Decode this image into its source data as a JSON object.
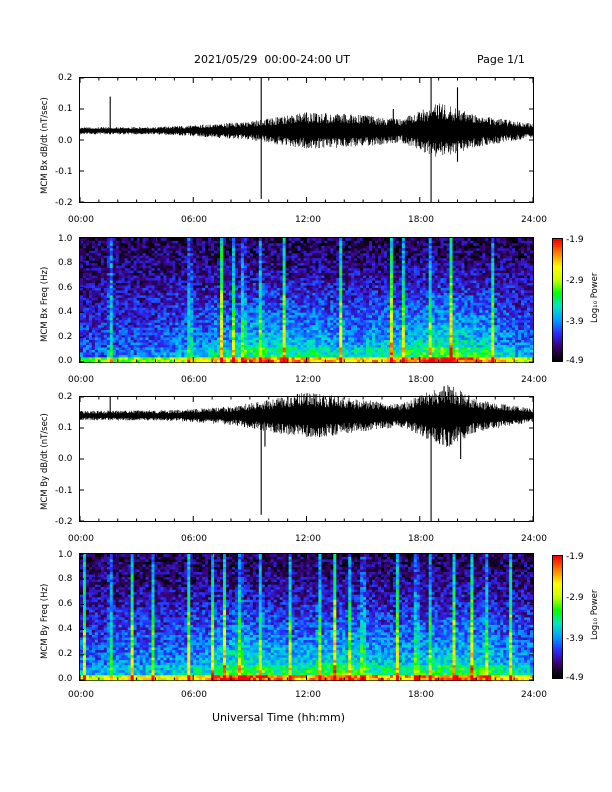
{
  "header": {
    "title": "2021/05/29  00:00-24:00 UT",
    "page": "Page 1/1"
  },
  "xaxis": {
    "label": "Universal Time (hh:mm)",
    "ticks": [
      "00:00",
      "06:00",
      "12:00",
      "18:00",
      "24:00"
    ]
  },
  "colors": {
    "trace": "#000000",
    "colormap": [
      "#000000",
      "#3a0070",
      "#2a2aff",
      "#00a0ff",
      "#00e6c8",
      "#00ff00",
      "#c8ff00",
      "#ffff00",
      "#ff8000",
      "#ff0000"
    ]
  },
  "chart_data": [
    {
      "type": "line",
      "ylabel": "MCM Bx dB/dt (nT/sec)",
      "xlim": [
        "00:00",
        "24:00"
      ],
      "ylim": [
        -0.2,
        0.2
      ],
      "yticks": [
        "0.2",
        "0.1",
        "0.0",
        "-0.1",
        "-0.2"
      ],
      "baseline": 0.03,
      "activity_envelope": [
        {
          "t": "00:00",
          "amp": 0.008
        },
        {
          "t": "04:00",
          "amp": 0.008
        },
        {
          "t": "06:00",
          "amp": 0.012
        },
        {
          "t": "09:00",
          "amp": 0.02
        },
        {
          "t": "12:00",
          "amp": 0.04
        },
        {
          "t": "15:00",
          "amp": 0.035
        },
        {
          "t": "17:00",
          "amp": 0.025
        },
        {
          "t": "19:00",
          "amp": 0.06
        },
        {
          "t": "21:00",
          "amp": 0.035
        },
        {
          "t": "24:00",
          "amp": 0.015
        }
      ],
      "spikes": [
        {
          "t": "01:36",
          "min": 0.03,
          "max": 0.14
        },
        {
          "t": "09:36",
          "min": -0.19,
          "max": 0.2
        },
        {
          "t": "18:36",
          "min": -0.2,
          "max": 0.2
        },
        {
          "t": "16:36",
          "min": 0.0,
          "max": 0.1
        },
        {
          "t": "20:00",
          "min": -0.07,
          "max": 0.17
        }
      ]
    },
    {
      "type": "heatmap",
      "ylabel": "MCM Bx Freq (Hz)",
      "colorbar_label": "Log₁₀ Power",
      "ylim": [
        0.0,
        1.0
      ],
      "yticks": [
        "1.0",
        "0.8",
        "0.6",
        "0.4",
        "0.2",
        "0.0"
      ],
      "colorbar_ticks": [
        "-1.9",
        "-2.9",
        "-3.9",
        "-4.9"
      ],
      "color_range": [
        -4.9,
        -1.9
      ],
      "activity_profile": [
        0.15,
        0.15,
        0.18,
        0.2,
        0.25,
        0.3,
        0.35,
        0.45,
        0.5,
        0.55,
        0.55,
        0.5,
        0.5,
        0.45,
        0.4,
        0.5,
        0.5,
        0.55,
        0.6,
        0.7,
        0.6,
        0.55,
        0.4,
        0.3
      ],
      "streaks": [
        "01:36",
        "05:50",
        "07:30",
        "08:10",
        "08:40",
        "09:36",
        "10:50",
        "13:50",
        "16:30",
        "17:10",
        "18:36",
        "19:40",
        "21:50"
      ]
    },
    {
      "type": "line",
      "ylabel": "MCM By dB/dt (nT/sec)",
      "xlim": [
        "00:00",
        "24:00"
      ],
      "ylim": [
        -0.2,
        0.2
      ],
      "yticks": [
        "0.2",
        "0.1",
        "0.0",
        "-0.1",
        "-0.2"
      ],
      "baseline": 0.14,
      "activity_envelope": [
        {
          "t": "00:00",
          "amp": 0.01
        },
        {
          "t": "05:00",
          "amp": 0.012
        },
        {
          "t": "08:00",
          "amp": 0.02
        },
        {
          "t": "10:00",
          "amp": 0.035
        },
        {
          "t": "12:00",
          "amp": 0.05
        },
        {
          "t": "14:00",
          "amp": 0.04
        },
        {
          "t": "17:00",
          "amp": 0.025
        },
        {
          "t": "19:30",
          "amp": 0.07
        },
        {
          "t": "21:00",
          "amp": 0.035
        },
        {
          "t": "24:00",
          "amp": 0.015
        }
      ],
      "spikes": [
        {
          "t": "01:36",
          "min": 0.14,
          "max": 0.2
        },
        {
          "t": "09:36",
          "min": -0.18,
          "max": 0.14
        },
        {
          "t": "18:36",
          "min": -0.2,
          "max": 0.2
        },
        {
          "t": "20:10",
          "min": -0.0,
          "max": 0.2
        },
        {
          "t": "09:48",
          "min": 0.04,
          "max": 0.15
        }
      ]
    },
    {
      "type": "heatmap",
      "ylabel": "MCM By Freq (Hz)",
      "colorbar_label": "Log₁₀ Power",
      "ylim": [
        0.0,
        1.0
      ],
      "yticks": [
        "1.0",
        "0.8",
        "0.6",
        "0.4",
        "0.2",
        "0.0"
      ],
      "colorbar_ticks": [
        "-1.9",
        "-2.9",
        "-3.9",
        "-4.9"
      ],
      "color_range": [
        -4.9,
        -1.9
      ],
      "activity_profile": [
        0.3,
        0.3,
        0.35,
        0.35,
        0.35,
        0.4,
        0.45,
        0.6,
        0.65,
        0.6,
        0.55,
        0.5,
        0.55,
        0.6,
        0.6,
        0.55,
        0.5,
        0.5,
        0.55,
        0.6,
        0.6,
        0.55,
        0.45,
        0.4
      ],
      "streaks": [
        "00:15",
        "01:36",
        "02:45",
        "03:50",
        "05:45",
        "07:00",
        "07:40",
        "08:30",
        "09:36",
        "11:10",
        "12:40",
        "13:30",
        "14:20",
        "15:00",
        "16:50",
        "17:50",
        "18:36",
        "19:50",
        "20:45",
        "21:30",
        "22:50"
      ]
    }
  ]
}
